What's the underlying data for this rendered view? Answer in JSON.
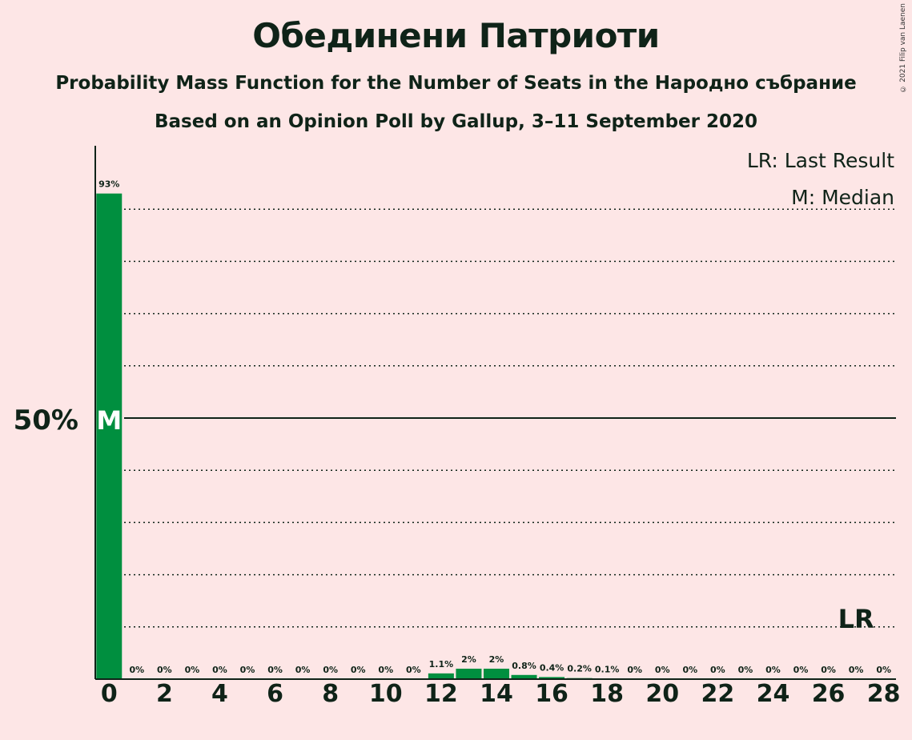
{
  "title": "Обединени Патриоти",
  "subtitle": "Probability Mass Function for the Number of Seats in the Народно събрание",
  "subtitle2": "Based on an Opinion Poll by Gallup, 3–11 September 2020",
  "copyright": "© 2021 Filip van Laenen",
  "legend": {
    "last_result": "LR: Last Result",
    "median": "M: Median"
  },
  "colors": {
    "background": "#fde6e6",
    "bar": "#008f3f",
    "text": "#0f2318"
  },
  "chart_data": {
    "type": "bar",
    "categories": [
      0,
      1,
      2,
      3,
      4,
      5,
      6,
      7,
      8,
      9,
      10,
      11,
      12,
      13,
      14,
      15,
      16,
      17,
      18,
      19,
      20,
      21,
      22,
      23,
      24,
      25,
      26,
      27,
      28
    ],
    "values": [
      93,
      0,
      0,
      0,
      0,
      0,
      0,
      0,
      0,
      0,
      0,
      0,
      1.1,
      2,
      2,
      0.8,
      0.4,
      0.2,
      0.1,
      0,
      0,
      0,
      0,
      0,
      0,
      0,
      0,
      0,
      0
    ],
    "labels": [
      "93%",
      "0%",
      "0%",
      "0%",
      "0%",
      "0%",
      "0%",
      "0%",
      "0%",
      "0%",
      "0%",
      "0%",
      "1.1%",
      "2%",
      "2%",
      "0.8%",
      "0.4%",
      "0.2%",
      "0.1%",
      "0%",
      "0%",
      "0%",
      "0%",
      "0%",
      "0%",
      "0%",
      "0%",
      "0%",
      "0%"
    ],
    "x_tick_labels": [
      "0",
      "2",
      "4",
      "6",
      "8",
      "10",
      "12",
      "14",
      "16",
      "18",
      "20",
      "22",
      "24",
      "26",
      "28"
    ],
    "y_tick_label": "50%",
    "ylim": [
      0,
      100
    ],
    "gridlines": [
      10,
      20,
      30,
      40,
      60,
      70,
      80,
      90
    ],
    "median_seat": 0,
    "median_label": "M",
    "last_result_seat": 27,
    "last_result_label": "LR"
  }
}
